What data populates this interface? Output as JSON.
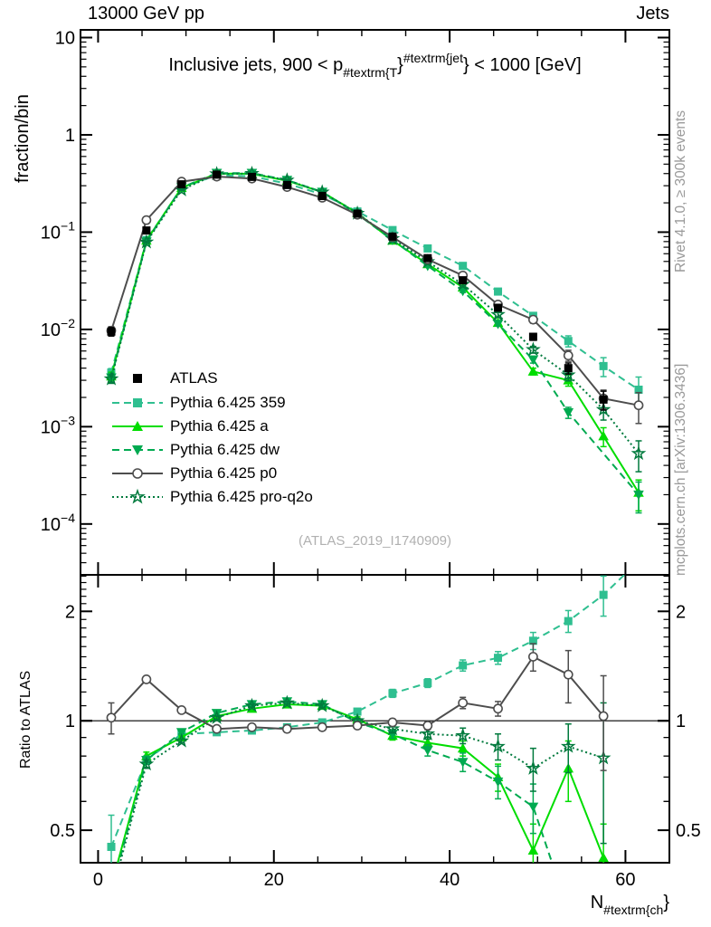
{
  "header": {
    "left": "13000 GeV pp",
    "right": "Jets"
  },
  "plot_title": {
    "parts": [
      "Inclusive jets, 900 < p",
      "#textrm{T",
      "}",
      "#textrm{jet",
      "}",
      " < 1000 [GeV]"
    ]
  },
  "axes": {
    "main_y_label": "fraction/bin",
    "ratio_y_label": "Ratio to ATLAS",
    "x_label_base": "N",
    "x_label_sub": "#textrm{ch",
    "x_label_close": "}"
  },
  "side_notes": {
    "rivet": "Rivet 4.1.0, ≥ 300k events",
    "mcplots": "mcplots.cern.ch [arXiv:1306.3436]"
  },
  "watermark": "(ATLAS_2019_I1740909)",
  "legend": [
    {
      "label": "ATLAS",
      "color": "#000000",
      "line": "none",
      "marker": "square"
    },
    {
      "label": "Pythia 6.425 359",
      "color": "#2fbf90",
      "line": "dashed",
      "marker": "square"
    },
    {
      "label": "Pythia 6.425 a",
      "color": "#00dd00",
      "line": "solid",
      "marker": "triangle-up"
    },
    {
      "label": "Pythia 6.425 dw",
      "color": "#00aa50",
      "line": "dashed",
      "marker": "triangle-down"
    },
    {
      "label": "Pythia 6.425 p0",
      "color": "#4d4d4d",
      "line": "solid",
      "marker": "circle-open"
    },
    {
      "label": "Pythia 6.425 pro-q2o",
      "color": "#007a3d",
      "line": "dotted",
      "marker": "star-open"
    }
  ],
  "chart_data": [
    {
      "type": "line",
      "panel": "main",
      "title": "Inclusive jets, 900 < p_{#textrm{T}}^{#textrm{jet}} < 1000 [GeV]",
      "ylabel": "fraction/bin",
      "yscale": "log",
      "y_range": [
        3e-05,
        12
      ],
      "x_range": [
        -2,
        65
      ],
      "x_major_ticks": [
        0,
        20,
        40,
        60
      ],
      "x_minor_step": 5,
      "grid": false,
      "y_ticks": [
        {
          "v": 10,
          "base": "10",
          "exp": ""
        },
        {
          "v": 1,
          "base": "1",
          "exp": ""
        },
        {
          "v": 0.1,
          "base": "10",
          "exp": "−1"
        },
        {
          "v": 0.01,
          "base": "10",
          "exp": "−2"
        },
        {
          "v": 0.001,
          "base": "10",
          "exp": "−3"
        },
        {
          "v": 0.0001,
          "base": "10",
          "exp": "−4"
        }
      ],
      "x": [
        1.5,
        5.5,
        9.5,
        13.5,
        17.5,
        21.5,
        25.5,
        29.5,
        33.5,
        37.5,
        41.5,
        45.5,
        49.5,
        53.5,
        57.5,
        61.5
      ],
      "rel_err": [
        0.1,
        0.02,
        0.01,
        0.008,
        0.008,
        0.008,
        0.01,
        0.012,
        0.018,
        0.025,
        0.035,
        0.05,
        0.08,
        0.13,
        0.22,
        0.35
      ],
      "series": [
        {
          "name": "Pythia 6.425 359",
          "color": "#2fbf90",
          "line": "dashed",
          "marker": "square",
          "values": [
            0.0036,
            0.083,
            0.285,
            0.385,
            0.375,
            0.315,
            0.245,
            0.163,
            0.105,
            0.068,
            0.045,
            0.0245,
            0.0138,
            0.0076,
            0.0042,
            0.0024
          ]
        },
        {
          "name": "Pythia 6.425 a",
          "color": "#00dd00",
          "line": "solid",
          "marker": "triangle-up",
          "values": [
            0.0033,
            0.082,
            0.285,
            0.4,
            0.398,
            0.338,
            0.258,
            0.157,
            0.082,
            0.047,
            0.027,
            0.0117,
            0.0037,
            0.003,
            0.0008,
            0.00021
          ]
        },
        {
          "name": "Pythia 6.425 dw",
          "color": "#00aa50",
          "line": "dashed",
          "marker": "triangle-down",
          "values": [
            0.0032,
            0.08,
            0.288,
            0.405,
            0.405,
            0.343,
            0.259,
            0.153,
            0.083,
            0.045,
            0.0248,
            0.0114,
            0.0049,
            0.0014,
            null,
            0.0002
          ]
        },
        {
          "name": "Pythia 6.425 pro-q2o",
          "color": "#007a3d",
          "line": "dotted",
          "marker": "star-open",
          "values": [
            0.0031,
            0.079,
            0.272,
            0.397,
            0.4,
            0.342,
            0.258,
            0.156,
            0.0855,
            0.0497,
            0.0291,
            0.0142,
            0.0062,
            0.0034,
            0.0015,
            0.00053
          ]
        },
        {
          "name": "Pythia 6.425 p0",
          "color": "#4d4d4d",
          "line": "solid",
          "marker": "circle-open",
          "values": [
            0.0097,
            0.133,
            0.33,
            0.372,
            0.356,
            0.291,
            0.226,
            0.151,
            0.089,
            0.0525,
            0.0358,
            0.018,
            0.0126,
            0.0054,
            0.00195,
            0.00166
          ]
        },
        {
          "name": "ATLAS",
          "color": "#000000",
          "line": "none",
          "marker": "square",
          "values": [
            0.0095,
            0.104,
            0.31,
            0.39,
            0.37,
            0.305,
            0.235,
            0.155,
            0.09,
            0.054,
            0.032,
            0.0167,
            0.0084,
            0.004,
            0.0019,
            null
          ]
        }
      ]
    },
    {
      "type": "line",
      "panel": "ratio",
      "ylabel": "Ratio to ATLAS",
      "yscale": "log",
      "y_range": [
        0.407,
        2.52
      ],
      "x_range": [
        -2,
        65
      ],
      "x_major_ticks": [
        0,
        20,
        40,
        60
      ],
      "x_minor_step": 5,
      "ref_line": 1,
      "grid": false,
      "y_ticks": [
        {
          "v": 2,
          "base": "2",
          "exp": ""
        },
        {
          "v": 1,
          "base": "1",
          "exp": ""
        },
        {
          "v": 0.5,
          "base": "0.5",
          "exp": ""
        }
      ],
      "x": [
        1.5,
        5.5,
        9.5,
        13.5,
        17.5,
        21.5,
        25.5,
        29.5,
        33.5,
        37.5,
        41.5,
        45.5,
        49.5,
        53.5,
        57.5,
        61.5
      ],
      "series": [
        {
          "name": "Pythia 6.425 359",
          "color": "#2fbf90",
          "line": "dashed",
          "marker": "square",
          "values": [
            0.45,
            0.78,
            0.92,
            0.93,
            0.94,
            0.96,
            0.99,
            1.06,
            1.19,
            1.27,
            1.42,
            1.49,
            1.66,
            1.88,
            2.22,
            2.75
          ],
          "yerr": [
            0.1,
            0.02,
            0.01,
            0.01,
            0.01,
            0.01,
            0.012,
            0.015,
            0.03,
            0.035,
            0.05,
            0.06,
            0.09,
            0.13,
            0.28,
            0
          ]
        },
        {
          "name": "Pythia 6.425 a",
          "color": "#00dd00",
          "line": "solid",
          "marker": "triangle-up",
          "values": [
            0.35,
            0.8,
            0.9,
            1.03,
            1.08,
            1.11,
            1.1,
            1.01,
            0.91,
            0.87,
            0.84,
            0.7,
            0.44,
            0.74,
            0.42,
            null
          ],
          "yerr": [
            0.05,
            0.02,
            0.01,
            0.01,
            0.01,
            0.01,
            0.012,
            0.015,
            0.025,
            0.03,
            0.04,
            0.06,
            0.08,
            0.14,
            0.1,
            0
          ]
        },
        {
          "name": "Pythia 6.425 dw",
          "color": "#00aa50",
          "line": "dashed",
          "marker": "triangle-down",
          "values": [
            0.34,
            0.78,
            0.93,
            1.05,
            1.11,
            1.13,
            1.11,
            0.99,
            0.92,
            0.83,
            0.77,
            0.68,
            0.58,
            0.3,
            null,
            null
          ],
          "yerr": [
            0.05,
            0.02,
            0.01,
            0.01,
            0.01,
            0.01,
            0.012,
            0.015,
            0.025,
            0.03,
            0.045,
            0.07,
            0.09,
            0,
            0,
            0
          ]
        },
        {
          "name": "Pythia 6.425 pro-q2o",
          "color": "#007a3d",
          "line": "dotted",
          "marker": "star-open",
          "values": [
            0.33,
            0.76,
            0.88,
            1.02,
            1.1,
            1.12,
            1.1,
            1.0,
            0.95,
            0.92,
            0.91,
            0.85,
            0.74,
            0.85,
            0.79,
            null
          ],
          "yerr": [
            0.05,
            0.02,
            0.01,
            0.01,
            0.01,
            0.01,
            0.012,
            0.015,
            0.025,
            0.03,
            0.045,
            0.07,
            0.1,
            0.13,
            0.33,
            0
          ]
        },
        {
          "name": "Pythia 6.425 p0",
          "color": "#4d4d4d",
          "line": "solid",
          "marker": "circle-open",
          "values": [
            1.02,
            1.3,
            1.07,
            0.95,
            0.96,
            0.95,
            0.96,
            0.97,
            0.99,
            0.97,
            1.12,
            1.08,
            1.5,
            1.34,
            1.03,
            null
          ],
          "yerr": [
            0.1,
            0.02,
            0.01,
            0.008,
            0.008,
            0.008,
            0.01,
            0.012,
            0.02,
            0.025,
            0.04,
            0.05,
            0.13,
            0.22,
            0.3,
            0
          ]
        }
      ]
    }
  ]
}
